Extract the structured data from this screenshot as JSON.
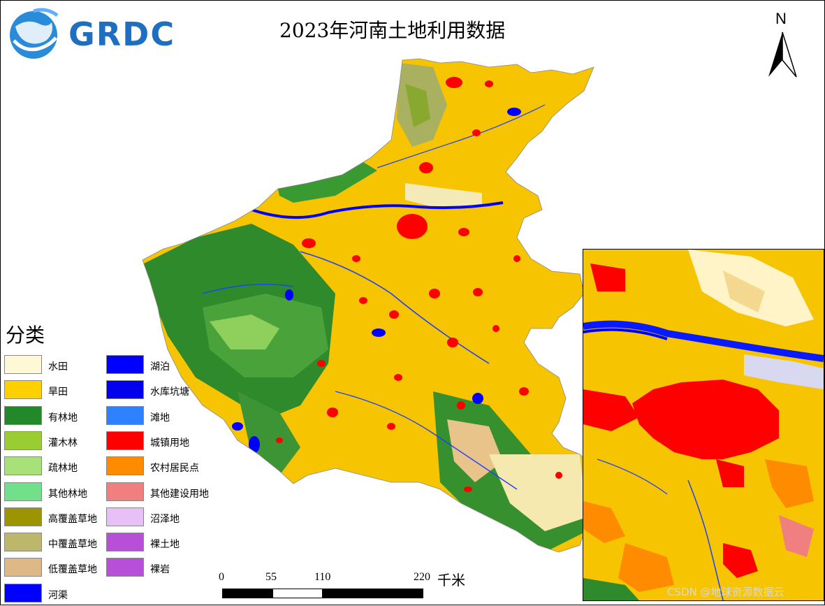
{
  "title": "2023年河南土地利用数据",
  "logo": {
    "text": "GRDC"
  },
  "north_arrow": {
    "label": "N"
  },
  "legend": {
    "title": "分类",
    "items": [
      {
        "label": "水田",
        "color": "#fff8d6"
      },
      {
        "label": "旱田",
        "color": "#ffd000"
      },
      {
        "label": "有林地",
        "color": "#22882a"
      },
      {
        "label": "灌木林",
        "color": "#9acd32"
      },
      {
        "label": "疏林地",
        "color": "#a8e07a"
      },
      {
        "label": "其他林地",
        "color": "#72e08a"
      },
      {
        "label": "高覆盖草地",
        "color": "#9c9400"
      },
      {
        "label": "中覆盖草地",
        "color": "#bdb76b"
      },
      {
        "label": "低覆盖草地",
        "color": "#deb887"
      },
      {
        "label": "河渠",
        "color": "#0000ff"
      },
      {
        "label": "湖泊",
        "color": "#0000ff"
      },
      {
        "label": "水库坑塘",
        "color": "#0000ee"
      },
      {
        "label": "滩地",
        "color": "#2f82ff"
      },
      {
        "label": "城镇用地",
        "color": "#ff0000"
      },
      {
        "label": "农村居民点",
        "color": "#ff8c00"
      },
      {
        "label": "其他建设用地",
        "color": "#f08080"
      },
      {
        "label": "沼泽地",
        "color": "#e8c0f8"
      },
      {
        "label": "裸土地",
        "color": "#b84fd8"
      },
      {
        "label": "裸岩",
        "color": "#b84fd8"
      }
    ]
  },
  "scale_bar": {
    "ticks": [
      "0",
      "55",
      "110",
      "220"
    ],
    "unit": "千米"
  },
  "watermark": "CSDN @地球资源数据云"
}
